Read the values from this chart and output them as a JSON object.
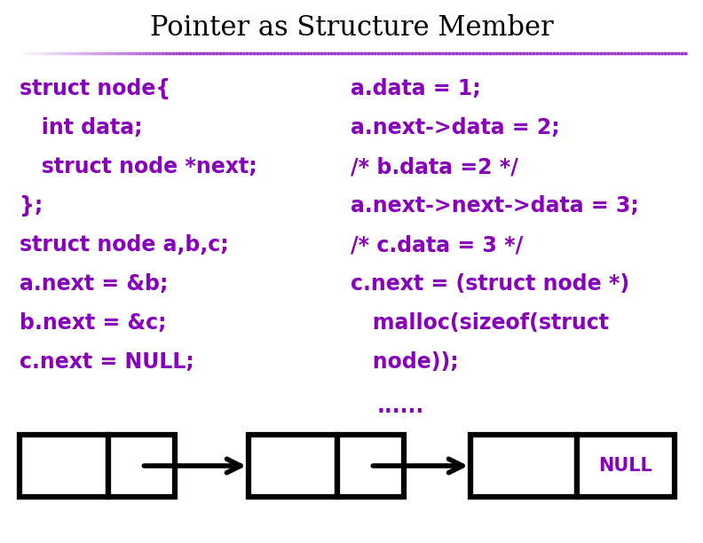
{
  "title": "Pointer as Structure Member",
  "title_fontsize": 22,
  "title_color": "#000000",
  "title_font": "DejaVu Serif",
  "bg_color": "#ffffff",
  "code_color": "#8800bb",
  "code_fontsize": 17,
  "code_font": "DejaVu Sans",
  "separator_color": "#9933cc",
  "left_lines": [
    "struct node{",
    "   int data;",
    "   struct node *next;",
    "};",
    "struct node a,b,c;",
    "a.next = &b;",
    "b.next = &c;",
    "c.next = NULL;"
  ],
  "right_lines": [
    "a.data = 1;",
    "a.next->data = 2;",
    "/* b.data =2 */",
    "a.next->next->data = 3;",
    "/* c.data = 3 */",
    "c.next = (struct node *)",
    "   malloc(sizeof(struct",
    "   node));"
  ],
  "dots_line": "......",
  "null_label": "NULL",
  "node_box_color": "#000000",
  "node_box_fill": "#ffffff",
  "arrow_color": "#000000",
  "null_text_color": "#8800bb",
  "figw": 7.92,
  "figh": 6.12,
  "dpi": 100
}
